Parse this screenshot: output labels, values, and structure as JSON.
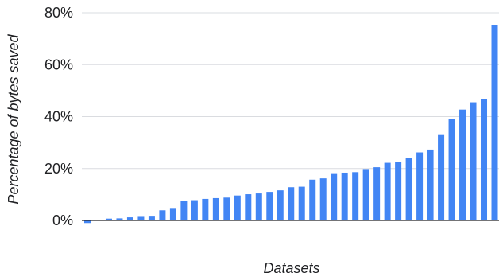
{
  "chart_data": {
    "type": "bar",
    "title": "",
    "xlabel": "Datasets",
    "ylabel": "Percentage of bytes saved",
    "ylim": [
      0,
      80
    ],
    "yticks": [
      0,
      20,
      40,
      60,
      80
    ],
    "ytick_labels": [
      "0%",
      "20%",
      "40%",
      "60%",
      "80%"
    ],
    "grid": true,
    "legend": "none",
    "series": [
      {
        "values": [
          -1.0,
          0.1,
          0.7,
          0.8,
          1.2,
          1.7,
          1.8,
          3.9,
          4.8,
          7.6,
          7.8,
          8.3,
          8.6,
          8.8,
          9.6,
          10.1,
          10.4,
          11.0,
          11.6,
          12.8,
          13.0,
          15.7,
          16.2,
          18.2,
          18.4,
          18.6,
          19.8,
          20.5,
          22.2,
          22.6,
          24.2,
          26.2,
          27.3,
          33.2,
          39.2,
          42.7,
          45.5,
          46.8,
          75.2
        ]
      }
    ],
    "colors": {
      "bar": "#4285f4",
      "grid": "#dadce0",
      "axis": "#202124",
      "text": "#202124"
    }
  }
}
